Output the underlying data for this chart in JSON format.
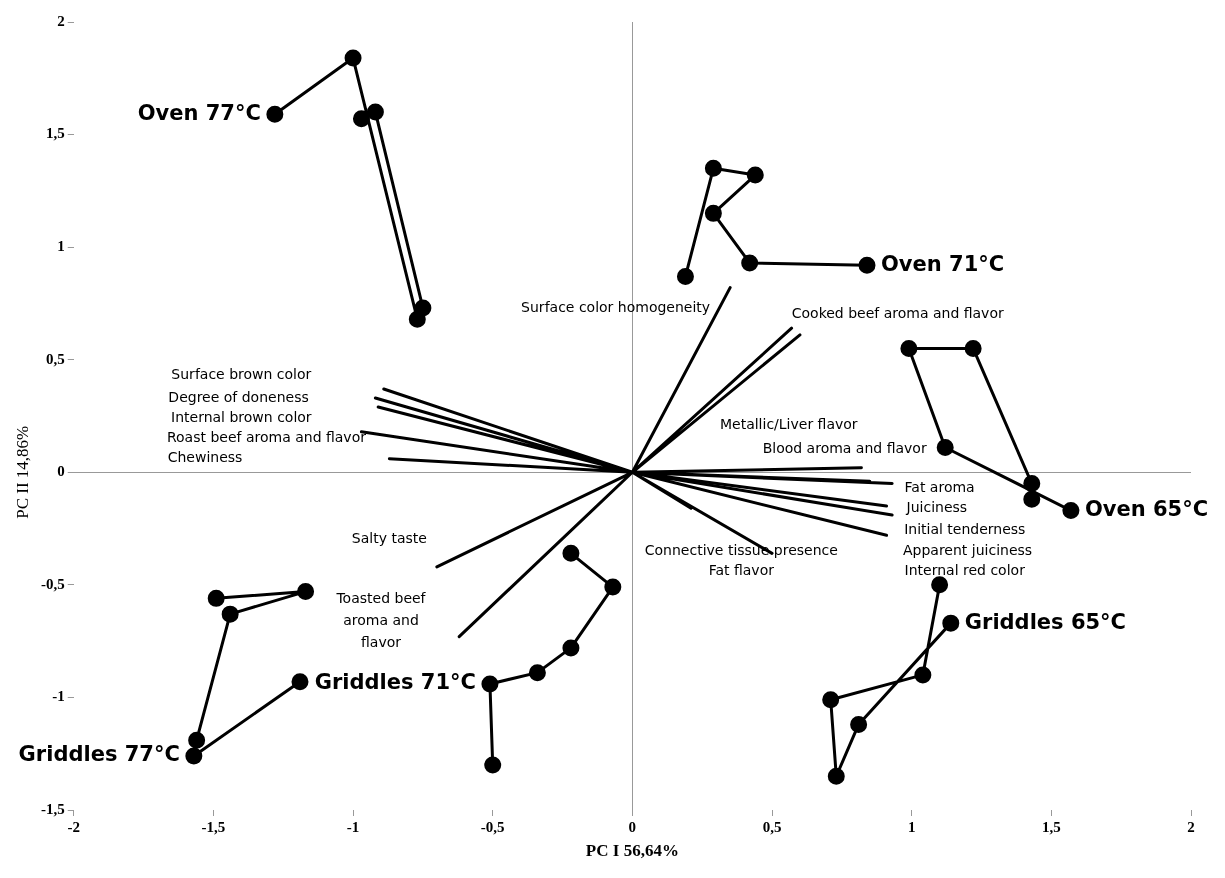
{
  "chart_data": {
    "type": "line",
    "xlabel": "PC I 56,64%",
    "ylabel": "PC II 14,86%",
    "xlim": [
      -2,
      2
    ],
    "ylim": [
      -1.5,
      2
    ],
    "xticks": [
      -2,
      {
        "value": -1.5,
        "label": "-1,5"
      },
      -1,
      {
        "value": -0.5,
        "label": "-0,5"
      },
      0,
      {
        "value": 0.5,
        "label": "0,5"
      },
      1,
      {
        "value": 1.5,
        "label": "1,5"
      },
      2
    ],
    "yticks": [
      {
        "value": -1.5,
        "label": "-1,5"
      },
      -1,
      {
        "value": -0.5,
        "label": "-0,5"
      },
      0,
      {
        "value": 0.5,
        "label": "0,5"
      },
      1,
      {
        "value": 1.5,
        "label": "1,5"
      },
      2
    ],
    "marker": "circle",
    "series": [
      {
        "name": "Oven 77°C",
        "color": "#000000",
        "x": [
          -1.28,
          -1.0,
          -0.77,
          -0.75,
          -0.92,
          -0.97
        ],
        "values": [
          1.59,
          1.84,
          0.68,
          0.73,
          1.6,
          1.57
        ]
      },
      {
        "name": "Oven 71°C",
        "color": "#000000",
        "x": [
          0.19,
          0.29,
          0.44,
          0.29,
          0.42,
          0.84
        ],
        "values": [
          0.87,
          1.35,
          1.32,
          1.15,
          0.93,
          0.92
        ]
      },
      {
        "name": "Oven 65°C",
        "color": "#000000",
        "x": [
          1.57,
          1.12,
          0.99,
          1.22,
          1.43,
          1.43
        ],
        "values": [
          -0.17,
          0.11,
          0.55,
          0.55,
          -0.05,
          -0.12
        ]
      },
      {
        "name": "Griddles 77°C",
        "color": "#000000",
        "x": [
          -1.49,
          -1.17,
          -1.44,
          -1.56,
          -1.57,
          -1.19
        ],
        "values": [
          -0.56,
          -0.53,
          -0.63,
          -1.19,
          -1.26,
          -0.93
        ]
      },
      {
        "name": "Griddles 71°C",
        "color": "#000000",
        "x": [
          -0.5,
          -0.51,
          -0.34,
          -0.22,
          -0.07,
          -0.22
        ],
        "values": [
          -1.3,
          -0.94,
          -0.89,
          -0.78,
          -0.51,
          -0.36
        ]
      },
      {
        "name": "Griddles 65°C",
        "color": "#000000",
        "x": [
          1.1,
          1.04,
          0.71,
          0.73,
          0.81,
          1.14
        ],
        "values": [
          -0.5,
          -0.9,
          -1.01,
          -1.35,
          -1.12,
          -0.67
        ]
      },
      {
        "color": "#000000",
        "marker": "none",
        "x": [
          0,
          0.35,
          null,
          0,
          0.57,
          null,
          0,
          0.6,
          null,
          0,
          0.82,
          null,
          0,
          0.85,
          null,
          0,
          0.93,
          null,
          0,
          0.91,
          null,
          0,
          0.5,
          null,
          0,
          0.21,
          null,
          0,
          -0.89,
          null,
          0,
          -0.92,
          null,
          0,
          -0.91,
          null,
          0,
          -0.97,
          null,
          0,
          -0.87,
          null,
          0,
          -0.7,
          null,
          0,
          -0.62
        ],
        "values": [
          0,
          0.82,
          null,
          0,
          0.64,
          null,
          0,
          0.61,
          null,
          0,
          0.02,
          null,
          0,
          -0.04,
          null,
          0,
          -0.05,
          null,
          0,
          -0.15,
          null,
          0,
          -0.36,
          null,
          0,
          -0.16,
          null,
          0,
          0.37,
          null,
          0,
          0.33,
          null,
          0,
          0.29,
          null,
          0,
          0.18,
          null,
          0,
          0.06,
          null,
          0,
          -0.42,
          null,
          0,
          -0.73
        ]
      },
      {
        "color": "#000000",
        "marker": "none",
        "x": [
          0,
          0.93,
          null,
          0,
          0.91
        ],
        "values": [
          0,
          -0.19,
          null,
          0,
          -0.28
        ]
      }
    ],
    "annotations": [
      "Surface color homogeneity",
      "Cooked beef aroma and flavor",
      "Surface brown color",
      "Degree of doneness",
      "Internal brown color",
      "Roast beef aroma and flavor",
      "Chewiness",
      "Metallic/Liver flavor",
      "Blood aroma and flavor",
      "Fat aroma",
      "Juiciness",
      "Initial tenderness",
      "Apparent juiciness",
      "Internal red color",
      "Connective tissue presence",
      "Fat flavor",
      "Salty taste",
      "Toasted beef\naroma and\nflavor"
    ]
  }
}
